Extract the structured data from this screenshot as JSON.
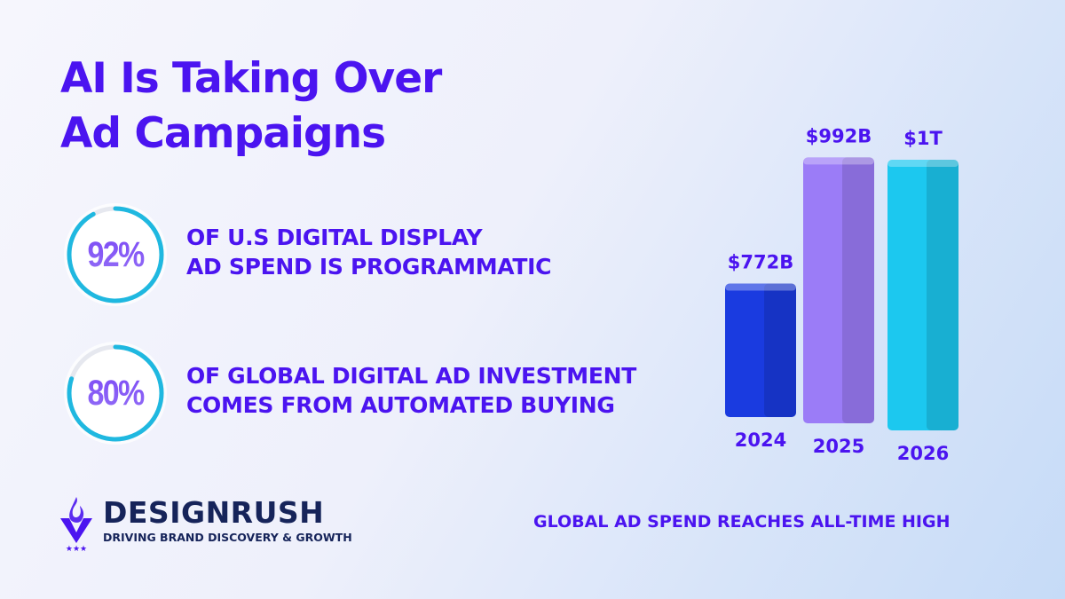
{
  "title": {
    "line1": "AI Is Taking Over",
    "line2": "Ad Campaigns"
  },
  "stats": [
    {
      "value": "92%",
      "percent": 92,
      "line1": "OF U.S DIGITAL DISPLAY",
      "line2": "AD SPEND IS PROGRAMMATIC"
    },
    {
      "value": "80%",
      "percent": 80,
      "line1": "OF GLOBAL DIGITAL AD INVESTMENT",
      "line2": "COMES FROM AUTOMATED BUYING"
    }
  ],
  "logo": {
    "brand": "DESIGNRUSH",
    "tagline": "DRIVING BRAND DISCOVERY & GROWTH"
  },
  "colors": {
    "accent": "#4b14f0",
    "ring": "#1fb8e0",
    "brand": "#16245a"
  },
  "chart_data": {
    "type": "bar",
    "categories": [
      "2024",
      "2025",
      "2026"
    ],
    "values": [
      772,
      992,
      1000
    ],
    "value_labels": [
      "$772B",
      "$992B",
      "$1T"
    ],
    "unit": "USD billions",
    "caption": "GLOBAL AD SPEND REACHES ALL-TIME HIGH",
    "colors": [
      "#1a3be0",
      "#9b7cf7",
      "#1cc8ef"
    ],
    "grid": false
  }
}
